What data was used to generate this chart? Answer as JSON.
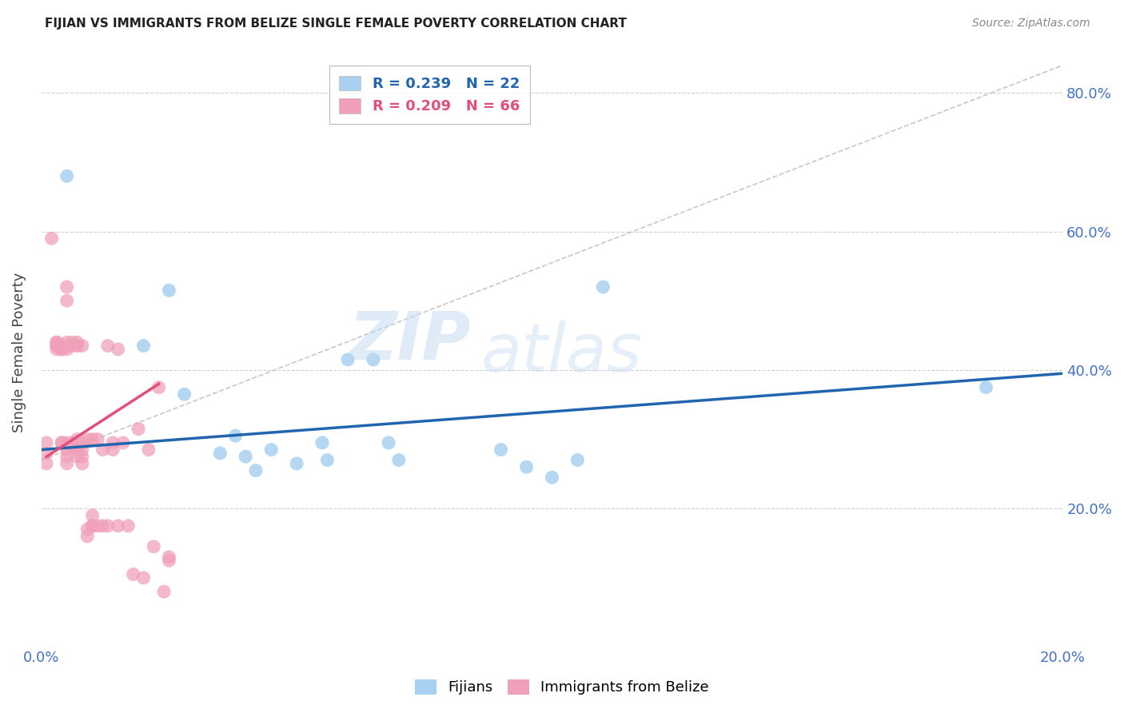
{
  "title": "FIJIAN VS IMMIGRANTS FROM BELIZE SINGLE FEMALE POVERTY CORRELATION CHART",
  "source": "Source: ZipAtlas.com",
  "ylabel": "Single Female Poverty",
  "watermark": "ZIPatlas",
  "fijians": {
    "color": "#a8d0f0",
    "line_color": "#2165ae",
    "points": [
      [
        0.005,
        0.68
      ],
      [
        0.02,
        0.435
      ],
      [
        0.025,
        0.515
      ],
      [
        0.028,
        0.365
      ],
      [
        0.035,
        0.28
      ],
      [
        0.038,
        0.305
      ],
      [
        0.04,
        0.275
      ],
      [
        0.042,
        0.255
      ],
      [
        0.045,
        0.285
      ],
      [
        0.05,
        0.265
      ],
      [
        0.055,
        0.295
      ],
      [
        0.056,
        0.27
      ],
      [
        0.06,
        0.415
      ],
      [
        0.065,
        0.415
      ],
      [
        0.068,
        0.295
      ],
      [
        0.07,
        0.27
      ],
      [
        0.09,
        0.285
      ],
      [
        0.095,
        0.26
      ],
      [
        0.1,
        0.245
      ],
      [
        0.105,
        0.27
      ],
      [
        0.11,
        0.52
      ],
      [
        0.185,
        0.375
      ]
    ],
    "trend_x": [
      0.0,
      0.2
    ],
    "trend_y": [
      0.285,
      0.395
    ]
  },
  "belize": {
    "color": "#f0a0b8",
    "line_color": "#e0507a",
    "points": [
      [
        0.001,
        0.295
      ],
      [
        0.001,
        0.28
      ],
      [
        0.001,
        0.265
      ],
      [
        0.002,
        0.59
      ],
      [
        0.003,
        0.435
      ],
      [
        0.003,
        0.435
      ],
      [
        0.003,
        0.44
      ],
      [
        0.003,
        0.44
      ],
      [
        0.003,
        0.43
      ],
      [
        0.004,
        0.435
      ],
      [
        0.004,
        0.435
      ],
      [
        0.004,
        0.43
      ],
      [
        0.004,
        0.43
      ],
      [
        0.004,
        0.295
      ],
      [
        0.004,
        0.295
      ],
      [
        0.005,
        0.44
      ],
      [
        0.005,
        0.43
      ],
      [
        0.005,
        0.295
      ],
      [
        0.005,
        0.285
      ],
      [
        0.005,
        0.275
      ],
      [
        0.005,
        0.52
      ],
      [
        0.005,
        0.265
      ],
      [
        0.005,
        0.5
      ],
      [
        0.006,
        0.44
      ],
      [
        0.006,
        0.435
      ],
      [
        0.006,
        0.295
      ],
      [
        0.006,
        0.29
      ],
      [
        0.007,
        0.44
      ],
      [
        0.007,
        0.435
      ],
      [
        0.007,
        0.3
      ],
      [
        0.007,
        0.285
      ],
      [
        0.007,
        0.275
      ],
      [
        0.008,
        0.435
      ],
      [
        0.008,
        0.295
      ],
      [
        0.008,
        0.285
      ],
      [
        0.008,
        0.275
      ],
      [
        0.008,
        0.265
      ],
      [
        0.009,
        0.3
      ],
      [
        0.009,
        0.17
      ],
      [
        0.009,
        0.16
      ],
      [
        0.01,
        0.3
      ],
      [
        0.01,
        0.19
      ],
      [
        0.01,
        0.175
      ],
      [
        0.01,
        0.175
      ],
      [
        0.011,
        0.3
      ],
      [
        0.011,
        0.175
      ],
      [
        0.012,
        0.285
      ],
      [
        0.012,
        0.175
      ],
      [
        0.013,
        0.435
      ],
      [
        0.013,
        0.175
      ],
      [
        0.014,
        0.295
      ],
      [
        0.014,
        0.285
      ],
      [
        0.015,
        0.43
      ],
      [
        0.015,
        0.175
      ],
      [
        0.016,
        0.295
      ],
      [
        0.017,
        0.175
      ],
      [
        0.018,
        0.105
      ],
      [
        0.019,
        0.315
      ],
      [
        0.02,
        0.1
      ],
      [
        0.021,
        0.285
      ],
      [
        0.022,
        0.145
      ],
      [
        0.023,
        0.375
      ],
      [
        0.024,
        0.08
      ],
      [
        0.025,
        0.13
      ],
      [
        0.025,
        0.125
      ]
    ],
    "trend_x": [
      0.001,
      0.023
    ],
    "trend_y": [
      0.275,
      0.38
    ]
  },
  "xlim": [
    0.0,
    0.2
  ],
  "ylim": [
    0.0,
    0.85
  ],
  "dashed_line_x": [
    0.0,
    0.2
  ],
  "dashed_line_y": [
    0.27,
    0.84
  ],
  "background_color": "#ffffff",
  "grid_color": "#d0d0d0",
  "title_fontsize": 11,
  "axis_label_color": "#4472c4",
  "xticks": [
    0.0,
    0.04,
    0.08,
    0.12,
    0.16,
    0.2
  ],
  "yticks": [
    0.2,
    0.4,
    0.6,
    0.8
  ]
}
